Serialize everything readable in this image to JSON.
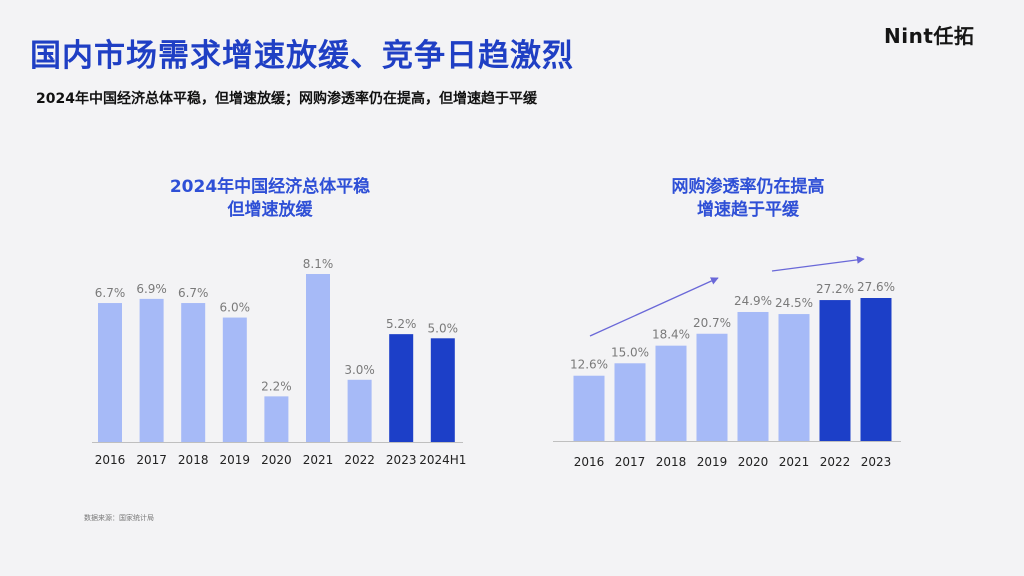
{
  "title": "国内市场需求增速放缓、竞争日趋激烈",
  "logo": "Nint任拓",
  "subtitle": "2024年中国经济总体平稳，但增速放缓；网购渗透率仍在提高，但增速趋于平缓",
  "source": "数据来源：国家统计局",
  "colors": {
    "title": "#1f3fc4",
    "bar_light": "#a6baf7",
    "bar_dark": "#1c3fc8",
    "arrow": "#6a68d8"
  },
  "chart_data": [
    {
      "type": "bar",
      "title_lines": [
        "2024年中国经济总体平稳",
        "但增速放缓"
      ],
      "categories": [
        "2016",
        "2017",
        "2018",
        "2019",
        "2020",
        "2021",
        "2022",
        "2023",
        "2024H1"
      ],
      "values": [
        6.7,
        6.9,
        6.7,
        6.0,
        2.2,
        8.1,
        3.0,
        5.2,
        5.0
      ],
      "labels": [
        "6.7%",
        "6.9%",
        "6.7%",
        "6.0%",
        "2.2%",
        "8.1%",
        "3.0%",
        "5.2%",
        "5.0%"
      ],
      "highlight": [
        false,
        false,
        false,
        false,
        false,
        false,
        false,
        true,
        true
      ],
      "ylim": [
        0,
        8.1
      ],
      "xlabel": "",
      "ylabel": "",
      "grid": false
    },
    {
      "type": "bar",
      "title_lines": [
        "网购渗透率仍在提高",
        "增速趋于平缓"
      ],
      "categories": [
        "2016",
        "2017",
        "2018",
        "2019",
        "2020",
        "2021",
        "2022",
        "2023"
      ],
      "values": [
        12.6,
        15.0,
        18.4,
        20.7,
        24.9,
        24.5,
        27.2,
        27.6
      ],
      "labels": [
        "12.6%",
        "15.0%",
        "18.4%",
        "20.7%",
        "24.9%",
        "24.5%",
        "27.2%",
        "27.6%"
      ],
      "highlight": [
        false,
        false,
        false,
        false,
        false,
        false,
        true,
        true
      ],
      "ylim": [
        0,
        27.6
      ],
      "xlabel": "",
      "ylabel": "",
      "grid": false
    }
  ]
}
